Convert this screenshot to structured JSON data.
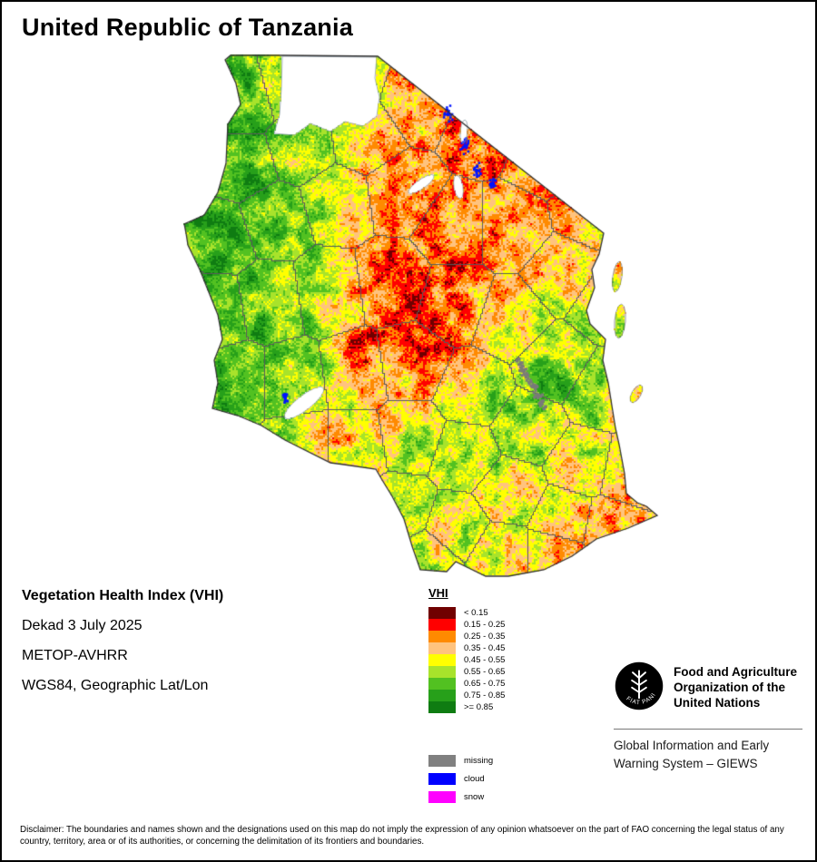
{
  "page": {
    "title": "United Republic of Tanzania"
  },
  "info": {
    "line1": "Vegetation Health Index (VHI)",
    "line2": "Dekad 3 July 2025",
    "line3": "METOP-AVHRR",
    "line4": "WGS84, Geographic Lat/Lon"
  },
  "legend": {
    "title": "VHI",
    "classes": [
      {
        "label": "< 0.15",
        "color": "#700000"
      },
      {
        "label": "0.15 - 0.25",
        "color": "#ff0000"
      },
      {
        "label": "0.25 - 0.35",
        "color": "#ff8a00"
      },
      {
        "label": "0.35 - 0.45",
        "color": "#ffc37e"
      },
      {
        "label": "0.45 - 0.55",
        "color": "#ffff00"
      },
      {
        "label": "0.55 - 0.65",
        "color": "#a8e32b"
      },
      {
        "label": "0.65 - 0.75",
        "color": "#52c121"
      },
      {
        "label": "0.75 - 0.85",
        "color": "#27a01a"
      },
      {
        "label": ">= 0.85",
        "color": "#0f7c12"
      }
    ],
    "extras": [
      {
        "label": "missing",
        "color": "#808080"
      },
      {
        "label": "cloud",
        "color": "#0000ff"
      },
      {
        "label": "snow",
        "color": "#ff00ff"
      }
    ]
  },
  "fao": {
    "motto": "FIAT PANIS",
    "org_lines": [
      "Food and Agriculture",
      "Organization of the",
      "United Nations"
    ],
    "giews_lines": [
      "Global Information and Early",
      "Warning System – GIEWS"
    ]
  },
  "disclaimer": "Disclaimer: The boundaries and names shown and the designations used on this map do not imply the expression of any opinion whatsoever on the part of FAO concerning the legal status of any country, territory, area or of its authorities, or concerning the delimitation of its frontiers and boundaries.",
  "map": {
    "region": "United Republic of Tanzania",
    "water_color": "#ffffff",
    "cloud_color": "#0014ff",
    "snow_color": "#ff00ff",
    "missing_color": "#7a7a7a",
    "boundary_color": "#303030",
    "admin_boundary_color": "#5a5a5a",
    "lake_outline_color": "#8a9aa8"
  }
}
